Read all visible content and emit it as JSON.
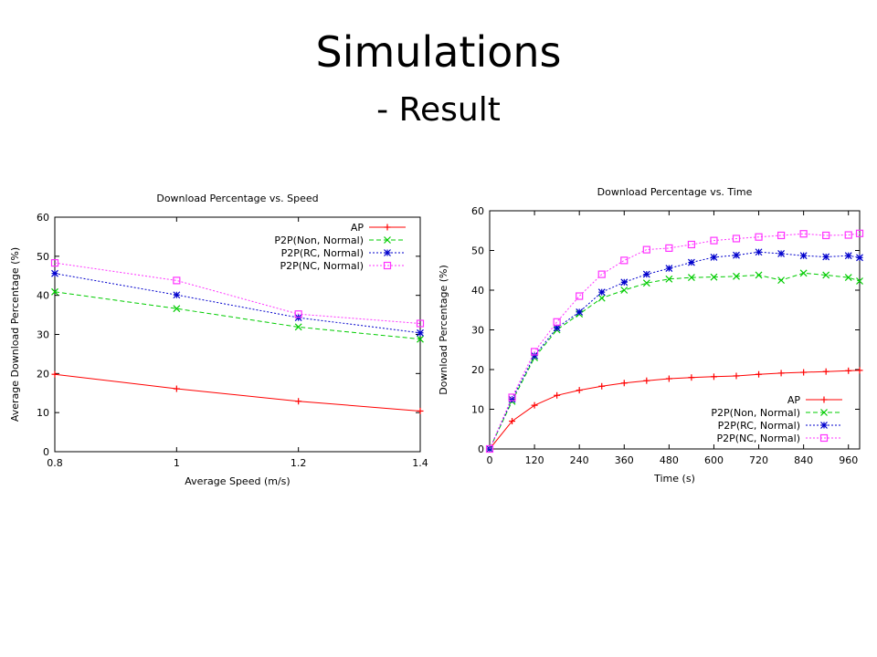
{
  "slide": {
    "title": "Simulations",
    "subtitle": "- Result"
  },
  "colors": {
    "AP": "#ff0000",
    "P2P(Non, Normal)": "#00cc00",
    "P2P(RC, Normal)": "#0000cc",
    "P2P(NC, Normal)": "#ff33ff"
  },
  "chart_data": [
    {
      "type": "line",
      "title": "Download Percentage vs. Speed",
      "xlabel": "Average Speed (m/s)",
      "ylabel": "Average Download Percentage (%)",
      "x": [
        0.8,
        1.0,
        1.2,
        1.4
      ],
      "xticks": [
        0.8,
        1.0,
        1.2,
        1.4
      ],
      "xtick_labels": [
        "0.8",
        "1",
        "1.2",
        "1.4"
      ],
      "yticks": [
        0,
        10,
        20,
        30,
        40,
        50,
        60
      ],
      "xlim": [
        0.8,
        1.4
      ],
      "ylim": [
        0,
        60
      ],
      "legend": "top-right",
      "series": [
        {
          "name": "AP",
          "marker": "plus",
          "dash": "solid",
          "values": [
            19.8,
            16.1,
            12.9,
            10.4
          ]
        },
        {
          "name": "P2P(Non, Normal)",
          "marker": "x",
          "dash": "dashed",
          "values": [
            40.9,
            36.6,
            31.9,
            28.8
          ]
        },
        {
          "name": "P2P(RC, Normal)",
          "marker": "star",
          "dash": "dotted",
          "values": [
            45.6,
            40.1,
            34.3,
            30.4
          ]
        },
        {
          "name": "P2P(NC, Normal)",
          "marker": "square",
          "dash": "dotted",
          "values": [
            48.3,
            43.8,
            35.2,
            32.8
          ]
        }
      ]
    },
    {
      "type": "line",
      "title": "Download Percentage vs. Time",
      "xlabel": "Time (s)",
      "ylabel": "Download Percentage (%)",
      "x": [
        0,
        60,
        120,
        180,
        240,
        300,
        360,
        420,
        480,
        540,
        600,
        660,
        720,
        780,
        840,
        900,
        960,
        990
      ],
      "xticks": [
        0,
        120,
        240,
        360,
        480,
        600,
        720,
        840,
        960
      ],
      "yticks": [
        0,
        10,
        20,
        30,
        40,
        50,
        60
      ],
      "xlim": [
        0,
        990
      ],
      "ylim": [
        0,
        60
      ],
      "legend": "bottom-right",
      "series": [
        {
          "name": "AP",
          "marker": "plus",
          "dash": "solid",
          "values": [
            0,
            7,
            11,
            13.5,
            14.8,
            15.8,
            16.6,
            17.2,
            17.7,
            18.0,
            18.2,
            18.4,
            18.8,
            19.1,
            19.3,
            19.5,
            19.7,
            19.8
          ]
        },
        {
          "name": "P2P(Non, Normal)",
          "marker": "x",
          "dash": "dashed",
          "values": [
            0,
            12,
            23,
            30,
            34,
            38,
            40,
            41.8,
            42.8,
            43.2,
            43.3,
            43.5,
            43.8,
            42.5,
            44.3,
            43.8,
            43.2,
            42.3
          ]
        },
        {
          "name": "P2P(RC, Normal)",
          "marker": "star",
          "dash": "dotted",
          "values": [
            0,
            12.5,
            23.5,
            30.5,
            34.5,
            39.5,
            42,
            44,
            45.5,
            47,
            48.3,
            48.8,
            49.6,
            49.2,
            48.7,
            48.4,
            48.7,
            48.2
          ]
        },
        {
          "name": "P2P(NC, Normal)",
          "marker": "square",
          "dash": "dotted",
          "values": [
            0,
            13,
            24.5,
            32,
            38.5,
            44,
            47.5,
            50.2,
            50.6,
            51.5,
            52.5,
            53,
            53.4,
            53.8,
            54.2,
            53.8,
            53.9,
            54.3
          ]
        }
      ]
    }
  ]
}
